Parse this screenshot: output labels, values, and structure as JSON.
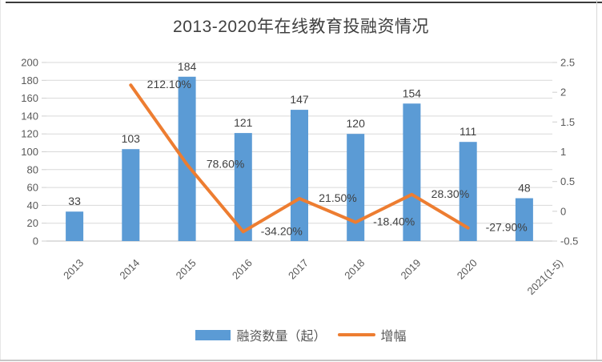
{
  "chart_data": {
    "type": "combo_bar_line",
    "title": "2013-2020年在线教育投融资情况",
    "categories": [
      "2013",
      "2014",
      "2015",
      "2016",
      "2017",
      "2018",
      "2019",
      "2020",
      "2021(1-5)"
    ],
    "series": [
      {
        "name": "融资数量（起）",
        "type": "bar",
        "axis": "left",
        "color": "#5B9BD5",
        "values": [
          33,
          103,
          184,
          121,
          147,
          120,
          154,
          111,
          48
        ],
        "data_labels": [
          "33",
          "103",
          "184",
          "121",
          "147",
          "120",
          "154",
          "111",
          "48"
        ]
      },
      {
        "name": "增幅",
        "type": "line",
        "axis": "right",
        "color": "#ED7D31",
        "values": [
          null,
          2.121,
          0.786,
          -0.342,
          0.215,
          -0.184,
          0.283,
          -0.279,
          null
        ],
        "data_labels": [
          null,
          "212.10%",
          "78.60%",
          "-34.20%",
          "21.50%",
          "-18.40%",
          "28.30%",
          "-27.90%",
          null
        ]
      }
    ],
    "left_axis": {
      "min": 0,
      "max": 200,
      "step": 20,
      "tick_labels": [
        "0",
        "20",
        "40",
        "60",
        "80",
        "100",
        "120",
        "140",
        "160",
        "180",
        "200"
      ]
    },
    "right_axis": {
      "min": -0.5,
      "max": 2.5,
      "step": 0.5,
      "tick_labels": [
        "-0.5",
        "0",
        "0.5",
        "1",
        "1.5",
        "2",
        "2.5"
      ]
    },
    "grid": true,
    "legend_position": "bottom",
    "colors": {
      "grid": "#D9D9D9",
      "axis_line": "#BFBFBF",
      "tick_mark": "#CFCFCF",
      "tick_label": "#595959",
      "data_label": "#404040",
      "title": "#404040"
    }
  }
}
